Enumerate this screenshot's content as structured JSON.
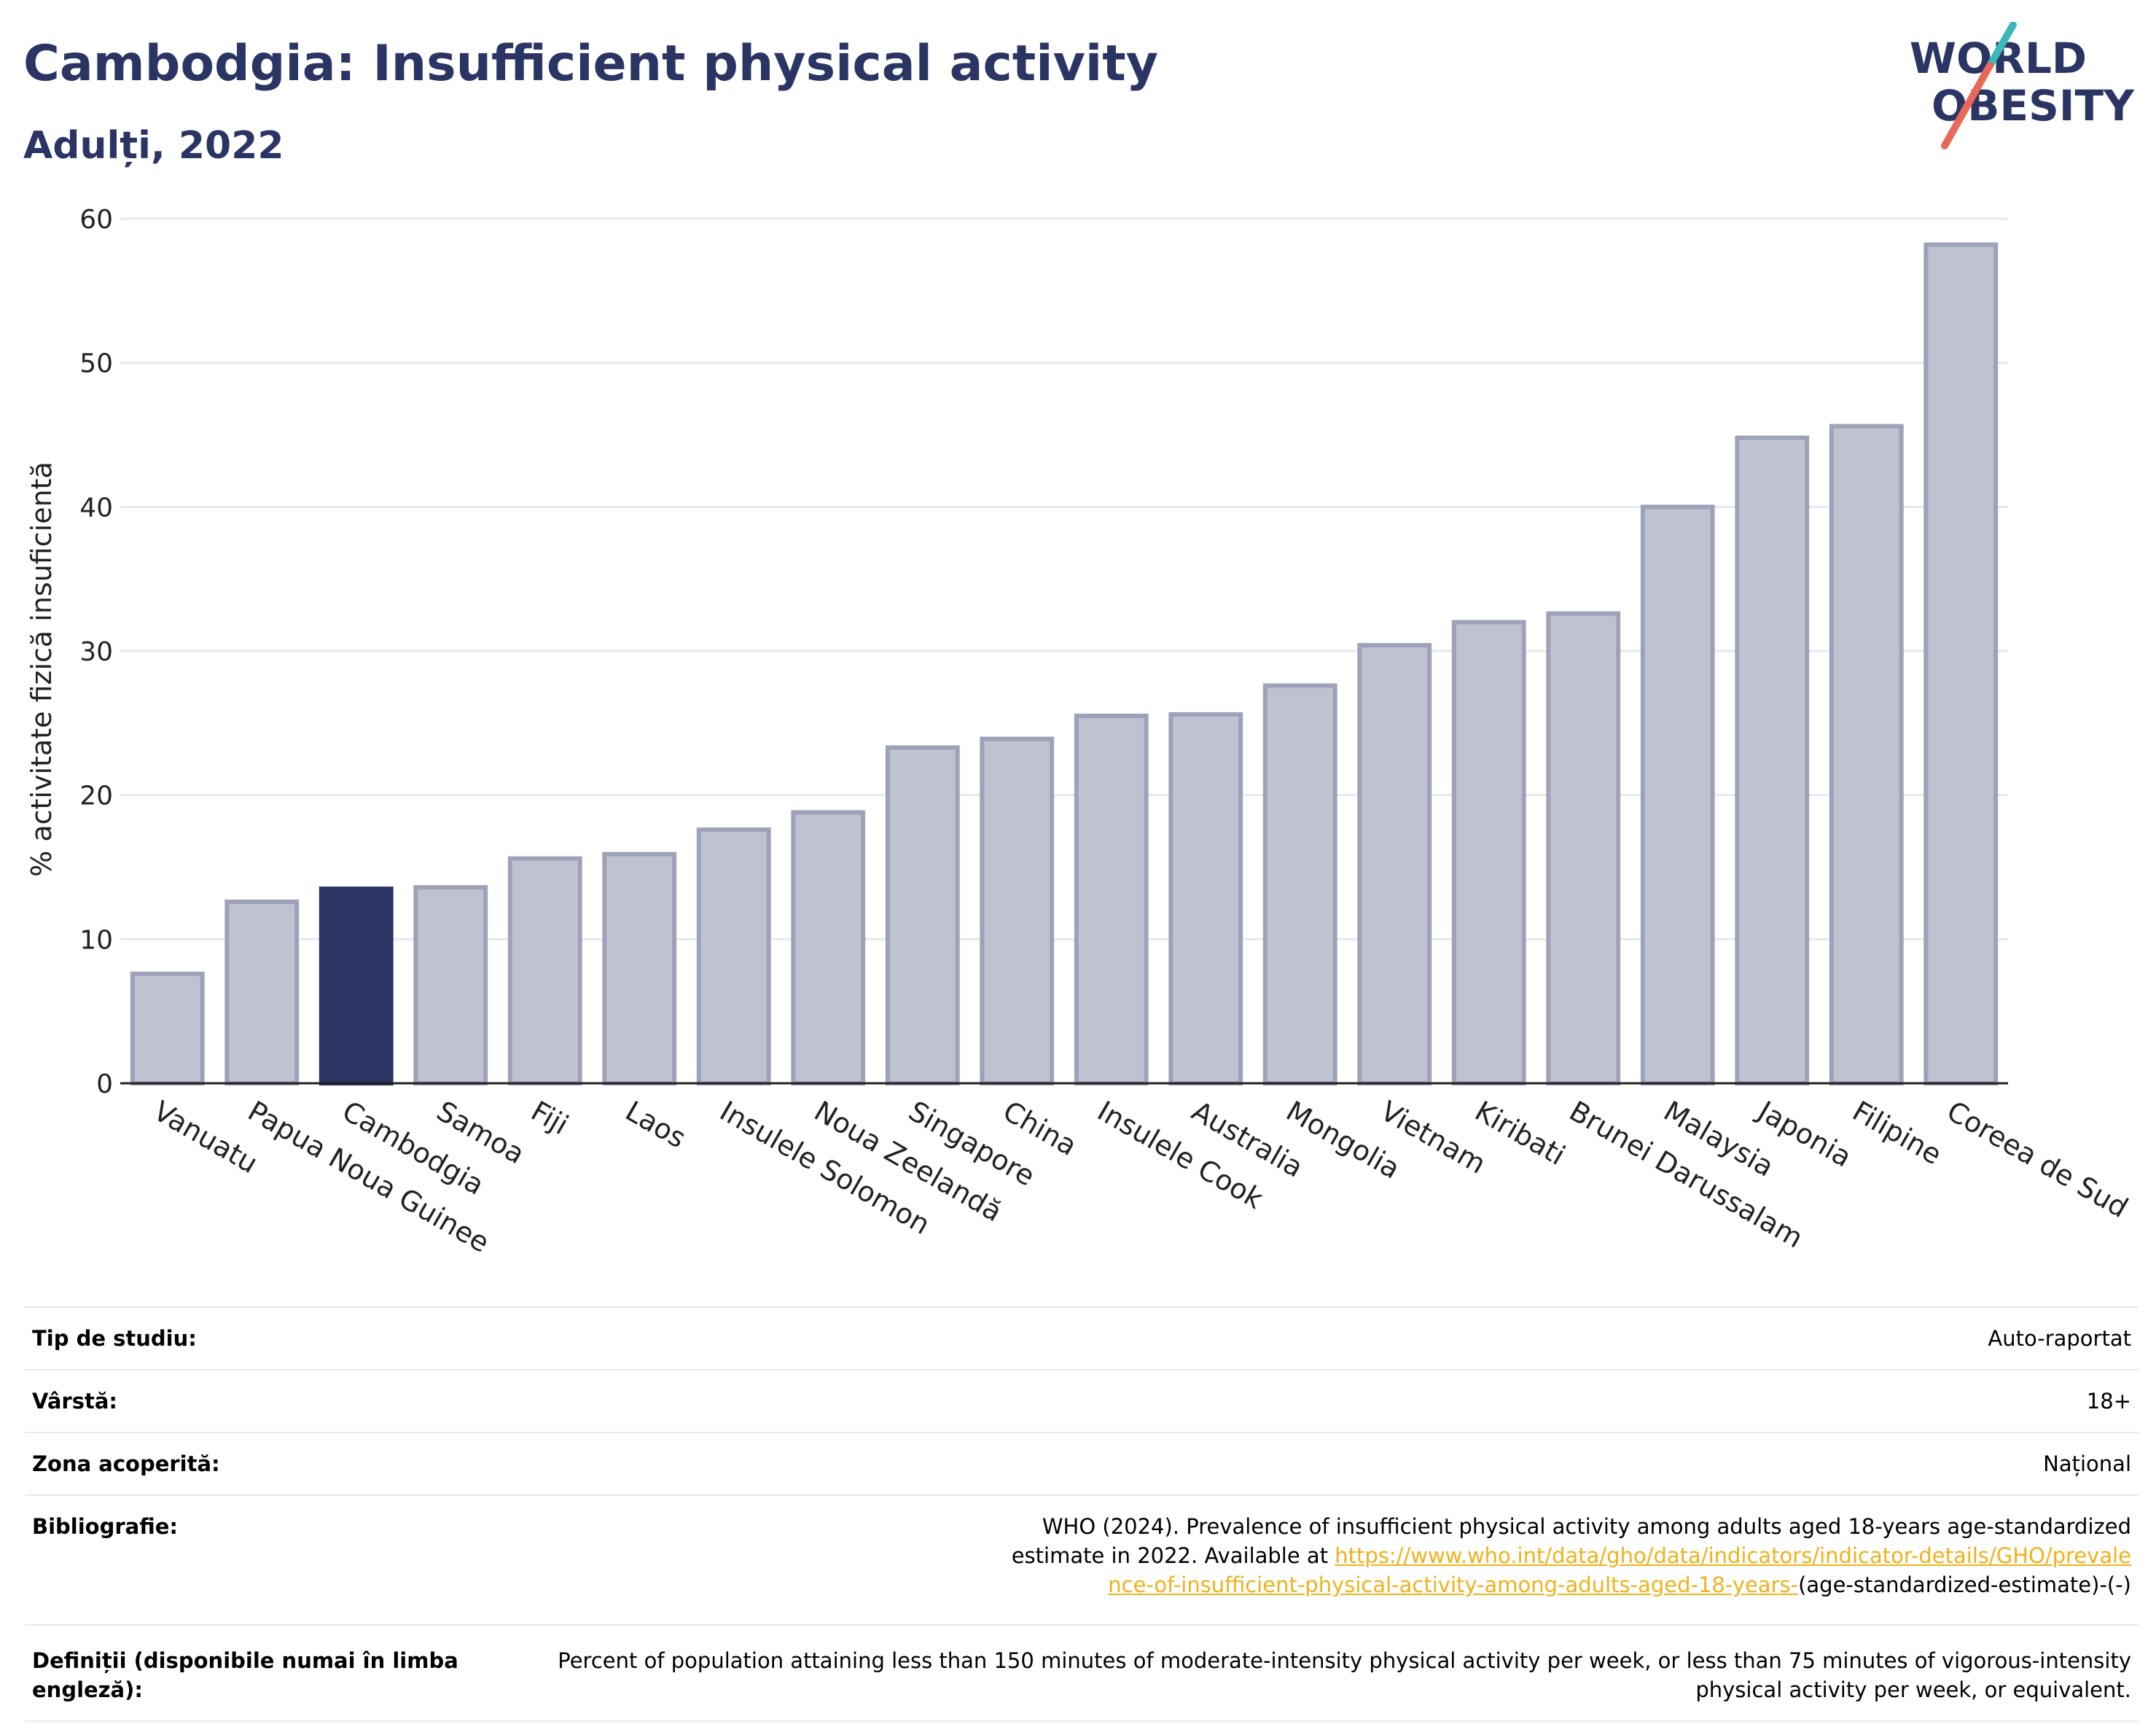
{
  "header": {
    "title": "Cambodgia: Insufficient physical activity",
    "subtitle": "Adulți, 2022"
  },
  "logo": {
    "line1": "WORLD",
    "line2": "OBESITY",
    "text_color": "#2b3563",
    "slash_colors": [
      "#3bb7b8",
      "#e8685a"
    ]
  },
  "chart_data": {
    "type": "bar",
    "ylabel": "% activitate fizică insuficientă",
    "ylim": [
      0,
      60
    ],
    "yticks": [
      "0",
      "10",
      "20",
      "30",
      "40",
      "50",
      "60"
    ],
    "grid": true,
    "categories": [
      "Vanuatu",
      "Papua Noua Guinee",
      "Cambodgia",
      "Samoa",
      "Fiji",
      "Laos",
      "Insulele Solomon",
      "Noua Zeelandă",
      "Singapore",
      "China",
      "Insulele Cook",
      "Australia",
      "Mongolia",
      "Vietnam",
      "Kiribati",
      "Brunei Darussalam",
      "Malaysia",
      "Japonia",
      "Filipine",
      "Coreea de Sud"
    ],
    "values": [
      7.6,
      12.6,
      13.5,
      13.6,
      15.6,
      15.9,
      17.6,
      18.8,
      23.3,
      23.9,
      25.5,
      25.6,
      27.6,
      30.4,
      32.0,
      32.6,
      40.0,
      44.8,
      45.6,
      58.2
    ],
    "highlight": "Cambodgia",
    "colors": {
      "bar": "#bfc2d0",
      "bar_edge": "#9da2b8",
      "highlight": "#2b3563",
      "grid": "#e6e8ef"
    }
  },
  "details": {
    "study_type_label": "Tip de studiu:",
    "study_type_value": "Auto-raportat",
    "age_label": "Vârstă:",
    "age_value": "18+",
    "coverage_label": "Zona acoperită:",
    "coverage_value": "Național",
    "bibliography_label": "Bibliografie:",
    "bibliography_text": "WHO (2024). Prevalence of insufficient physical activity among adults aged 18-years age-standardized estimate in 2022. Available at",
    "bibliography_link": "https://www.who.int/data/gho/data/indicators/indicator-details/GHO/prevalence-of-insufficient-physical-activity-among-adults-aged-18-years-",
    "bibliography_suffix": "(age-standardized-estimate)-(-)",
    "definitions_label": "Definiții (disponibile numai în limba engleză):",
    "definitions_value": "Percent of population attaining less than 150 minutes of moderate-intensity physical activity per week, or less than 75 minutes of vigorous-intensity physical activity per week, or equivalent."
  }
}
